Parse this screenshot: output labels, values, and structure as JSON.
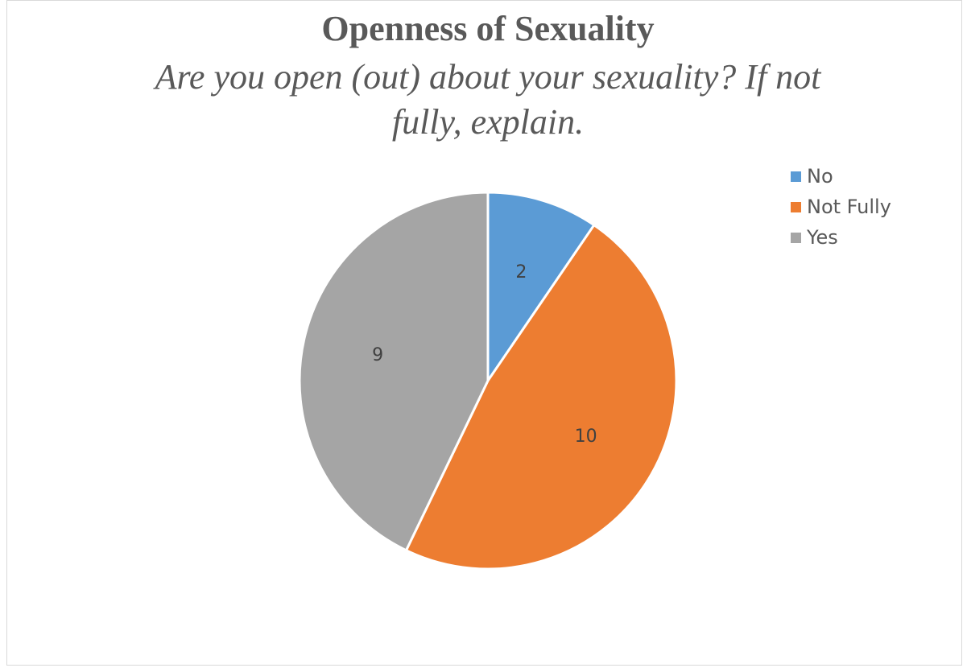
{
  "chart_data": {
    "type": "pie",
    "title": "Openness of Sexuality",
    "subtitle_lines": [
      "Are you open (out) about your sexuality? If not",
      "fully, explain."
    ],
    "categories": [
      "No",
      "Not Fully",
      "Yes"
    ],
    "values": [
      2,
      10,
      9
    ],
    "colors": [
      "#5b9bd5",
      "#ed7d31",
      "#a5a5a5"
    ],
    "data_labels": [
      "2",
      "10",
      "9"
    ],
    "legend_position": "top-right"
  }
}
